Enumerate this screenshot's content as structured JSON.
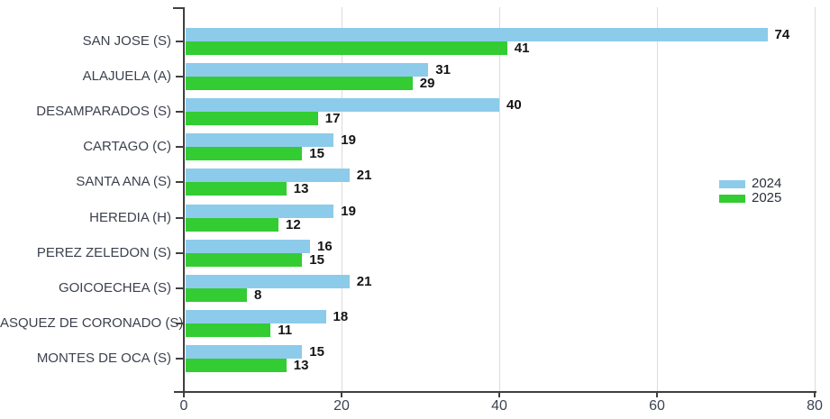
{
  "chart_data": {
    "type": "bar",
    "orientation": "horizontal",
    "title": "",
    "categories": [
      "SAN JOSE (S)",
      "ALAJUELA (A)",
      "DESAMPARADOS (S)",
      "CARTAGO (C)",
      "SANTA ANA (S)",
      "HEREDIA (H)",
      "PEREZ ZELEDON (S)",
      "GOICOECHEA (S)",
      "ASQUEZ DE CORONADO (S)",
      "MONTES DE OCA (S)"
    ],
    "series": [
      {
        "name": "2024",
        "color": "#8dcbeb",
        "values": [
          74,
          31,
          40,
          19,
          21,
          19,
          16,
          21,
          18,
          15
        ]
      },
      {
        "name": "2025",
        "color": "#33cc33",
        "values": [
          41,
          29,
          17,
          15,
          13,
          12,
          15,
          8,
          11,
          13
        ]
      }
    ],
    "xlim": [
      0,
      80
    ],
    "xticks": [
      0,
      20,
      40,
      60,
      80
    ],
    "xtick_labels": [
      "0",
      "20",
      "40",
      "60",
      "80"
    ],
    "grid": "vertical",
    "value_labels": true,
    "legend_position": "right-middle",
    "colors": {
      "axis": "#404040",
      "gridline": "#dcdcdc",
      "category_label": "#3c414d",
      "tick_label": "#3d4353",
      "value_label": "#141414"
    }
  }
}
